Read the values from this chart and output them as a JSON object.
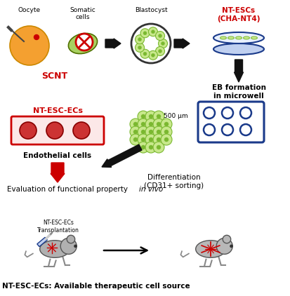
{
  "bg_color": "#ffffff",
  "red_color": "#cc0000",
  "black": "#000000",
  "green_cell": "#7ab830",
  "light_green": "#c8e88c",
  "blue_outline": "#1a3a8a",
  "light_blue": "#c0d0f0",
  "orange_cell": "#f4a030",
  "pink_bg": "#fce8e8",
  "dark_red_cell": "#cc3333",
  "labels": {
    "oocyte": "Oocyte",
    "somatic": "Somatic\ncells",
    "blastocyst": "Blastocyst",
    "ntescs": "NT-ESCs\n(CHA-NT4)",
    "scnt": "SCNT",
    "eb": "EB formation\nin microwell",
    "size": "500 μm",
    "diff": "Differentiation\n(CD31+ sorting)",
    "ntescecs": "NT-ESC-ECs",
    "endothelial": "Endothelial cells",
    "eval": "Evaluation of functional property",
    "in_vivo": "in vivo",
    "transplant": "NT-ESC-ECs\nTransplantation",
    "footer": "NT-ESC-ECs: Available therapeutic cell source"
  }
}
